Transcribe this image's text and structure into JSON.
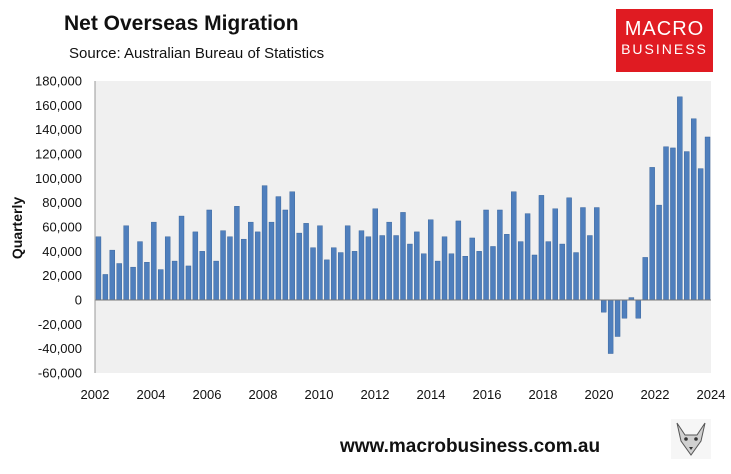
{
  "header": {
    "title": "Net Overseas Migration",
    "subtitle": "Source: Australian Bureau of Statistics"
  },
  "logo": {
    "line1": "MACRO",
    "line2": "BUSINESS",
    "color": "#e01b22"
  },
  "footer": {
    "url": "www.macrobusiness.com.au"
  },
  "chart_data": {
    "type": "bar",
    "title": "Net Overseas Migration",
    "subtitle": "Source: Australian Bureau of Statistics",
    "xlabel": "",
    "ylabel": "Quarterly",
    "ylim": [
      -60000,
      180000
    ],
    "y_ticks": [
      -60000,
      -40000,
      -20000,
      0,
      20000,
      40000,
      60000,
      80000,
      100000,
      120000,
      140000,
      160000,
      180000
    ],
    "y_tick_labels": [
      "-60,000",
      "-40,000",
      "-20,000",
      "0",
      "20,000",
      "40,000",
      "60,000",
      "80,000",
      "100,000",
      "120,000",
      "140,000",
      "160,000",
      "180,000"
    ],
    "x_tick_labels": [
      "2002",
      "2004",
      "2006",
      "2008",
      "2010",
      "2012",
      "2014",
      "2016",
      "2018",
      "2020",
      "2022",
      "2024"
    ],
    "x_start_year": 2002,
    "x_end_year": 2024,
    "bar_color": "#4f7fbd",
    "plot_background": "#f0f0f0",
    "grid": false,
    "legend": "none",
    "series": [
      {
        "values": [
          52000,
          21000,
          41000,
          30000,
          61000,
          27000,
          48000,
          31000,
          64000,
          25000,
          52000,
          32000,
          69000,
          28000,
          56000,
          40000,
          74000,
          32000,
          57000,
          52000,
          77000,
          50000,
          64000,
          56000,
          94000,
          64000,
          85000,
          74000,
          89000,
          55000,
          63000,
          43000,
          61000,
          33000,
          43000,
          39000,
          61000,
          40000,
          57000,
          52000,
          75000,
          53000,
          64000,
          53000,
          72000,
          46000,
          56000,
          38000,
          66000,
          32000,
          52000,
          38000,
          65000,
          36000,
          51000,
          40000,
          74000,
          44000,
          74000,
          54000,
          89000,
          48000,
          71000,
          37000,
          86000,
          48000,
          75000,
          46000,
          84000,
          39000,
          76000,
          53000,
          76000,
          -10000,
          -44000,
          -30000,
          -15000,
          2000,
          -15000,
          35000,
          109000,
          78000,
          126000,
          125000,
          167000,
          122000,
          149000,
          108000,
          134000
        ]
      }
    ]
  }
}
